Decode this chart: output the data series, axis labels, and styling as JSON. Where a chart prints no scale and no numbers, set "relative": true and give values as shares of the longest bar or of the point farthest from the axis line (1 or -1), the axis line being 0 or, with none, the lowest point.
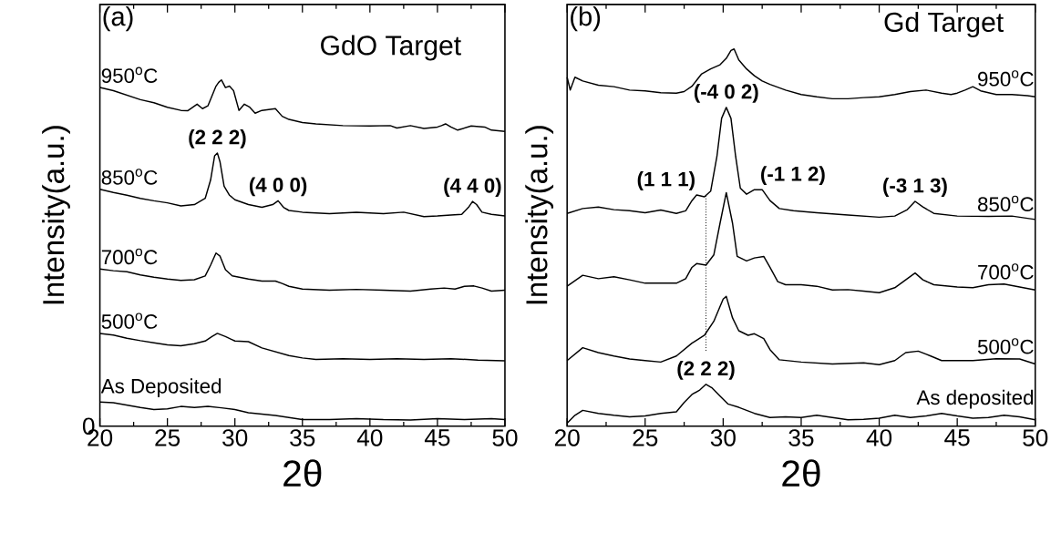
{
  "chart_data": [
    {
      "type": "line",
      "relative": true,
      "title": "GdO Target",
      "xlabel": "2θ",
      "ylabel": "Intensity(a.u.)",
      "xlim": [
        20,
        50
      ],
      "xticks": [
        20,
        25,
        30,
        35,
        40,
        45,
        50
      ],
      "annotations": [
        "(a)",
        "0",
        {
          "text": "(2 2 2)",
          "x": 28.7,
          "y": 0.789
        },
        {
          "text": "(4 0 0)",
          "x": 33.2,
          "y": 0.651
        },
        {
          "text": "(4 4 0)",
          "x": 47.6,
          "y": 0.649
        }
      ],
      "series": [
        {
          "name": "950$^{o}$C",
          "color": "#000000",
          "x": [
            20,
            21,
            22,
            23,
            24,
            25,
            26,
            26.5,
            27.2,
            27.6,
            28,
            28.6,
            28.8,
            29.0,
            29.3,
            29.6,
            29.9,
            30.3,
            30.7,
            31.1,
            31.5,
            32,
            33,
            33.5,
            34,
            35,
            36,
            38,
            40,
            41.5,
            42,
            43,
            44,
            45,
            45.3,
            45.6,
            46,
            46.5,
            47.5,
            48.5,
            49,
            50
          ],
          "values": [
            0.978,
            0.969,
            0.956,
            0.943,
            0.934,
            0.921,
            0.912,
            0.911,
            0.93,
            0.917,
            0.925,
            0.982,
            0.993,
            1.0,
            0.978,
            0.982,
            0.969,
            0.912,
            0.93,
            0.921,
            0.904,
            0.912,
            0.917,
            0.895,
            0.886,
            0.877,
            0.873,
            0.868,
            0.867,
            0.868,
            0.861,
            0.868,
            0.86,
            0.864,
            0.868,
            0.873,
            0.864,
            0.855,
            0.867,
            0.864,
            0.855,
            0.851
          ]
        },
        {
          "name": "850$^{o}$C",
          "color": "#000000",
          "x": [
            20,
            21,
            22,
            23,
            24,
            25,
            26,
            27,
            27.8,
            28.2,
            28.5,
            28.7,
            28.9,
            29.2,
            29.6,
            30,
            31,
            32,
            32.8,
            33.2,
            33.6,
            34,
            35,
            37,
            39,
            41,
            42.5,
            44,
            45,
            46,
            46.8,
            47.3,
            47.6,
            47.9,
            48.3,
            49,
            50
          ],
          "values": [
            0.684,
            0.675,
            0.667,
            0.658,
            0.651,
            0.645,
            0.636,
            0.64,
            0.658,
            0.711,
            0.781,
            0.789,
            0.763,
            0.693,
            0.667,
            0.654,
            0.64,
            0.632,
            0.64,
            0.651,
            0.632,
            0.623,
            0.618,
            0.614,
            0.618,
            0.614,
            0.618,
            0.605,
            0.607,
            0.61,
            0.612,
            0.632,
            0.649,
            0.64,
            0.618,
            0.612,
            0.607
          ]
        },
        {
          "name": "700$^{o}$C",
          "color": "#000000",
          "x": [
            20,
            21,
            22,
            23,
            24,
            25,
            26,
            27,
            27.8,
            28.2,
            28.6,
            28.9,
            29.3,
            29.8,
            31,
            32,
            33,
            33.5,
            34,
            35,
            37,
            39,
            41,
            43,
            44.5,
            45.5,
            46.3,
            47,
            47.7,
            48.3,
            49,
            50
          ],
          "values": [
            0.454,
            0.449,
            0.446,
            0.437,
            0.43,
            0.425,
            0.421,
            0.423,
            0.434,
            0.465,
            0.5,
            0.491,
            0.452,
            0.434,
            0.425,
            0.419,
            0.419,
            0.412,
            0.404,
            0.396,
            0.393,
            0.395,
            0.393,
            0.39,
            0.396,
            0.399,
            0.396,
            0.404,
            0.405,
            0.399,
            0.39,
            0.393
          ]
        },
        {
          "name": "500$^{o}$C",
          "color": "#000000",
          "x": [
            20,
            21,
            22,
            23,
            24,
            25,
            26,
            27,
            27.8,
            28.3,
            28.7,
            29.3,
            30,
            31,
            32,
            33,
            34,
            35,
            36,
            38,
            40,
            42,
            44,
            46,
            48,
            50
          ],
          "values": [
            0.268,
            0.263,
            0.254,
            0.247,
            0.241,
            0.235,
            0.232,
            0.238,
            0.246,
            0.259,
            0.268,
            0.259,
            0.246,
            0.244,
            0.226,
            0.215,
            0.204,
            0.197,
            0.193,
            0.195,
            0.193,
            0.195,
            0.193,
            0.195,
            0.191,
            0.189
          ]
        },
        {
          "name": "As Deposited",
          "color": "#000000",
          "x": [
            20,
            21,
            22,
            23,
            24,
            25,
            26,
            27,
            28,
            29,
            30,
            31,
            32,
            33,
            34,
            35,
            37,
            39,
            41,
            43,
            45,
            47,
            49,
            50
          ],
          "values": [
            0.07,
            0.068,
            0.061,
            0.054,
            0.048,
            0.05,
            0.057,
            0.054,
            0.057,
            0.053,
            0.048,
            0.039,
            0.035,
            0.031,
            0.025,
            0.019,
            0.019,
            0.022,
            0.019,
            0.018,
            0.022,
            0.019,
            0.022,
            0.019
          ]
        }
      ]
    },
    {
      "type": "line",
      "relative": true,
      "title": "Gd Target",
      "xlabel": "2θ",
      "ylabel": "Intensity(a.u.)",
      "xlim": [
        20,
        50
      ],
      "xticks": [
        20,
        25,
        30,
        35,
        40,
        45,
        50
      ],
      "annotations": [
        "(b)",
        {
          "text": "(-4 0 2)",
          "x": 30.2,
          "y": 0.845
        },
        {
          "text": "(1 1 1)",
          "x": 28.3,
          "y": 0.613
        },
        {
          "text": "(-1 1 2)",
          "x": 32.3,
          "y": 0.627
        },
        {
          "text": "(-3 1 3)",
          "x": 42.3,
          "y": 0.596
        },
        {
          "text": "(2 2 2)",
          "x": 28.9,
          "y": 0.111
        }
      ],
      "series": [
        {
          "name": "950$^{o}$C",
          "color": "#000000",
          "x": [
            20,
            20.2,
            20.5,
            21,
            22,
            23,
            24,
            25,
            26,
            27,
            27.5,
            28,
            28.6,
            29.2,
            29.8,
            30.2,
            30.5,
            30.7,
            31,
            31.5,
            32,
            32.5,
            33,
            34,
            35,
            36,
            37,
            38,
            39,
            40,
            41,
            42,
            43,
            44,
            44.6,
            45,
            45.5,
            46,
            46.5,
            47.5,
            48.5,
            49.5,
            50
          ],
          "values": [
            0.925,
            0.891,
            0.925,
            0.915,
            0.904,
            0.9,
            0.891,
            0.889,
            0.884,
            0.883,
            0.887,
            0.901,
            0.933,
            0.947,
            0.958,
            0.975,
            0.996,
            1.0,
            0.971,
            0.947,
            0.929,
            0.915,
            0.906,
            0.891,
            0.879,
            0.873,
            0.868,
            0.868,
            0.871,
            0.873,
            0.879,
            0.887,
            0.891,
            0.883,
            0.879,
            0.883,
            0.891,
            0.9,
            0.889,
            0.879,
            0.879,
            0.876,
            0.873
          ]
        },
        {
          "name": "850$^{o}$C",
          "color": "#000000",
          "x": [
            20,
            21,
            22,
            23,
            24,
            25,
            26,
            27,
            27.6,
            28,
            28.3,
            28.8,
            29.2,
            29.6,
            29.9,
            30.2,
            30.5,
            30.8,
            31.1,
            31.5,
            32,
            32.5,
            33,
            33.6,
            34.5,
            36,
            38,
            40,
            41,
            41.8,
            42.3,
            42.8,
            43.5,
            45,
            47,
            48.5,
            50
          ],
          "values": [
            0.564,
            0.577,
            0.581,
            0.574,
            0.571,
            0.566,
            0.573,
            0.564,
            0.571,
            0.598,
            0.613,
            0.608,
            0.623,
            0.715,
            0.816,
            0.845,
            0.816,
            0.715,
            0.631,
            0.615,
            0.627,
            0.627,
            0.598,
            0.577,
            0.571,
            0.566,
            0.56,
            0.554,
            0.557,
            0.574,
            0.596,
            0.581,
            0.564,
            0.557,
            0.556,
            0.557,
            0.548
          ]
        },
        {
          "name": "700$^{o}$C",
          "color": "#000000",
          "x": [
            20,
            21,
            22,
            23,
            24,
            25,
            26,
            27,
            27.6,
            28,
            28.3,
            28.9,
            29.4,
            29.8,
            30.2,
            30.6,
            30.9,
            31.5,
            32,
            32.6,
            33,
            33.5,
            34,
            35,
            36,
            37,
            38,
            39,
            40,
            41,
            41.8,
            42.3,
            42.8,
            43.5,
            45,
            46,
            47,
            48,
            49,
            50
          ],
          "values": [
            0.371,
            0.4,
            0.391,
            0.396,
            0.388,
            0.379,
            0.379,
            0.379,
            0.391,
            0.421,
            0.431,
            0.427,
            0.454,
            0.538,
            0.619,
            0.538,
            0.45,
            0.438,
            0.446,
            0.45,
            0.421,
            0.383,
            0.375,
            0.375,
            0.371,
            0.361,
            0.362,
            0.358,
            0.354,
            0.367,
            0.391,
            0.406,
            0.388,
            0.375,
            0.369,
            0.367,
            0.375,
            0.377,
            0.369,
            0.361
          ]
        },
        {
          "name": "500$^{o}$C",
          "color": "#000000",
          "x": [
            20,
            21,
            22,
            23,
            24,
            25,
            26,
            27,
            28,
            28.8,
            29.4,
            30,
            30.2,
            30.6,
            31,
            31.6,
            32,
            32.6,
            33,
            33.6,
            35,
            37,
            39,
            40,
            41,
            41.7,
            42.5,
            43.3,
            44,
            46,
            47.5,
            49,
            50
          ],
          "values": [
            0.174,
            0.208,
            0.195,
            0.186,
            0.178,
            0.174,
            0.17,
            0.186,
            0.22,
            0.241,
            0.278,
            0.337,
            0.344,
            0.287,
            0.253,
            0.241,
            0.245,
            0.232,
            0.203,
            0.176,
            0.17,
            0.165,
            0.168,
            0.163,
            0.174,
            0.195,
            0.199,
            0.186,
            0.174,
            0.174,
            0.179,
            0.178,
            0.165
          ]
        },
        {
          "name": "As deposited",
          "color": "#000000",
          "x": [
            20,
            20.5,
            21,
            22,
            23,
            24,
            25,
            26,
            27,
            27.5,
            28,
            28.5,
            28.9,
            29.3,
            29.8,
            30.3,
            31,
            32,
            33,
            34,
            35,
            36,
            37,
            38,
            39,
            40,
            41,
            42,
            43,
            44,
            45,
            46,
            47,
            48,
            49,
            50
          ],
          "values": [
            0.008,
            0.029,
            0.042,
            0.034,
            0.029,
            0.025,
            0.027,
            0.034,
            0.038,
            0.063,
            0.084,
            0.096,
            0.111,
            0.101,
            0.08,
            0.059,
            0.05,
            0.034,
            0.023,
            0.025,
            0.023,
            0.029,
            0.023,
            0.017,
            0.018,
            0.021,
            0.029,
            0.023,
            0.027,
            0.034,
            0.027,
            0.021,
            0.023,
            0.029,
            0.025,
            0.017
          ]
        },
        {
          "type": "line",
          "line_style": "dotted",
          "color": "#000000",
          "x": [
            28.9,
            28.9
          ],
          "values": [
            0.2,
            0.611
          ]
        }
      ]
    }
  ]
}
